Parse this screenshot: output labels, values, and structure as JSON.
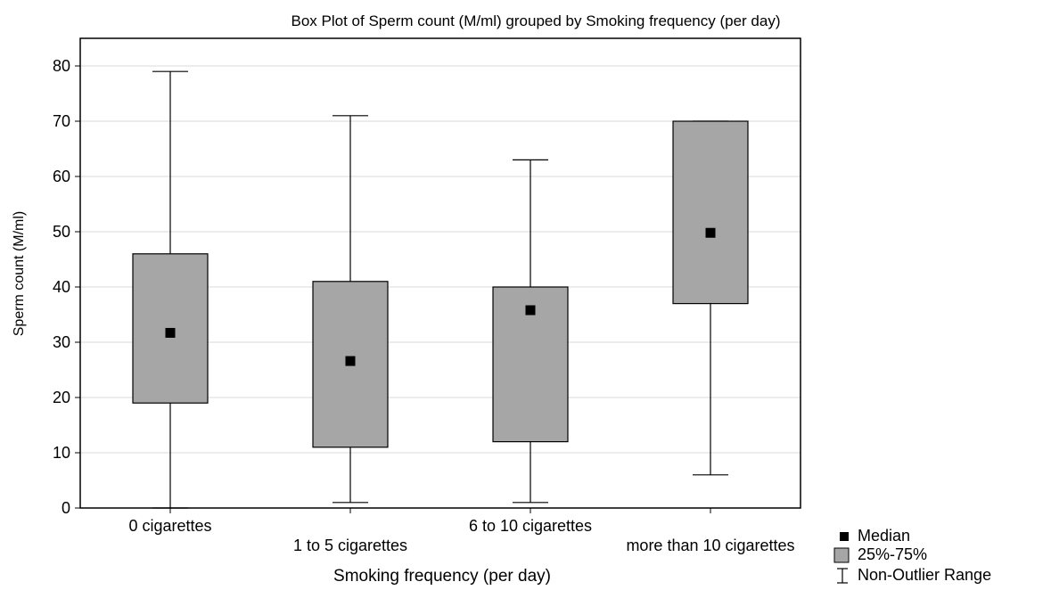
{
  "chart_data": {
    "type": "box",
    "title": "Box Plot of Sperm count (M/ml) grouped by  Smoking frequency (per day)",
    "xlabel": "Smoking frequency (per day)",
    "ylabel": "Sperm count (M/ml)",
    "ylim": [
      0,
      85
    ],
    "yticks": [
      0,
      10,
      20,
      30,
      40,
      50,
      60,
      70,
      80
    ],
    "grid": true,
    "categories": [
      "0 cigarettes",
      "1 to 5 cigarettes",
      "6 to 10 cigarettes",
      "more than 10 cigarettes"
    ],
    "boxes": [
      {
        "category": "0 cigarettes",
        "min": 0,
        "q1": 19,
        "median": 31.7,
        "q3": 46,
        "max": 79
      },
      {
        "category": "1 to 5 cigarettes",
        "min": 1,
        "q1": 11,
        "median": 26.6,
        "q3": 41,
        "max": 71
      },
      {
        "category": "6 to 10 cigarettes",
        "min": 1,
        "q1": 12,
        "median": 35.8,
        "q3": 40,
        "max": 63
      },
      {
        "category": "more than 10 cigarettes",
        "min": 6,
        "q1": 37,
        "median": 49.8,
        "q3": 70,
        "max": 70
      }
    ],
    "legend": {
      "position": "bottom-right",
      "items": [
        {
          "symbol": "median-square",
          "label": "Median"
        },
        {
          "symbol": "box",
          "label": "25%-75%"
        },
        {
          "symbol": "whisker",
          "label": "Non-Outlier Range"
        }
      ]
    },
    "colors": {
      "box_fill": "#a6a6a6",
      "median": "#000000",
      "grid": "#d9d9d9",
      "frame": "#000000"
    }
  }
}
